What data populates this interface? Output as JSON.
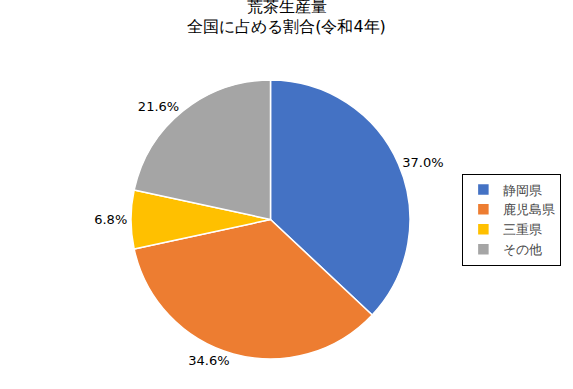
{
  "chart_data": {
    "type": "pie",
    "title": "荒茶生産量",
    "subtitle": "全国に占める割合(令和4年)",
    "categories": [
      "静岡県",
      "鹿児島県",
      "三重県",
      "その他"
    ],
    "values": [
      37.0,
      34.6,
      6.8,
      21.6
    ],
    "value_labels": [
      "37.0%",
      "34.6%",
      "6.8%",
      "21.6%"
    ],
    "colors": [
      "#4472C4",
      "#ED7D31",
      "#FFC000",
      "#A5A5A5"
    ],
    "data_labels": true,
    "legend": "right"
  }
}
